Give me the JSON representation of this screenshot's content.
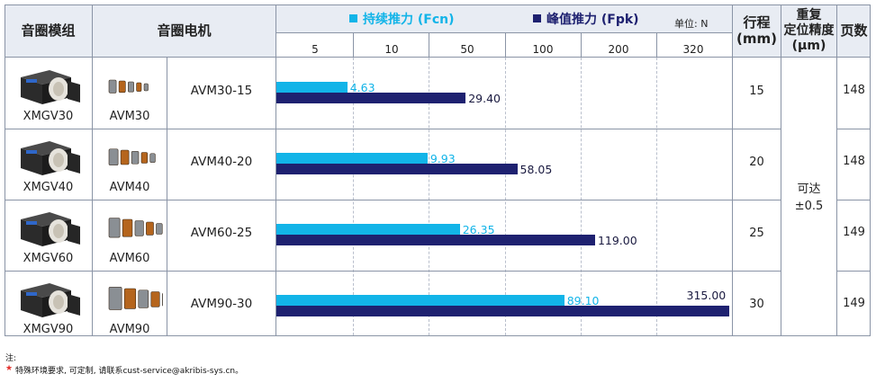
{
  "header": {
    "module": "音圈模组",
    "motor": "音圈电机",
    "legend_cont": "持续推力 (Fcn)",
    "legend_peak": "峰值推力 (Fpk)",
    "unit": "单位: N",
    "stroke": "行程\n(mm)",
    "repeat": "重复\n定位精度\n(µm)",
    "pages": "页数",
    "scale_ticks": [
      "5",
      "10",
      "50",
      "100",
      "200",
      "320"
    ]
  },
  "colors": {
    "cont": "#12b4e8",
    "peak": "#1e2170",
    "header_bg": "#e8ecf3"
  },
  "rows": [
    {
      "module": "XMGV30",
      "motor_img": "AVM30",
      "motor_model": "AVM30-15",
      "cont": "4.63",
      "peak": "29.40",
      "stroke": "15",
      "page": "148"
    },
    {
      "module": "XMGV40",
      "motor_img": "AVM40",
      "motor_model": "AVM40-20",
      "cont": "9.93",
      "peak": "58.05",
      "stroke": "20",
      "page": "148"
    },
    {
      "module": "XMGV60",
      "motor_img": "AVM60",
      "motor_model": "AVM60-25",
      "cont": "26.35",
      "peak": "119.00",
      "stroke": "25",
      "page": "149"
    },
    {
      "module": "XMGV90",
      "motor_img": "AVM90",
      "motor_model": "AVM90-30",
      "cont": "89.10",
      "peak": "315.00",
      "stroke": "30",
      "page": "149"
    }
  ],
  "repeat_value": "可达\n±0.5",
  "notes": {
    "title": "注:",
    "star": "★",
    "text": "特殊环境要求, 可定制, 请联系cust-service@akribis-sys.cn。"
  }
}
